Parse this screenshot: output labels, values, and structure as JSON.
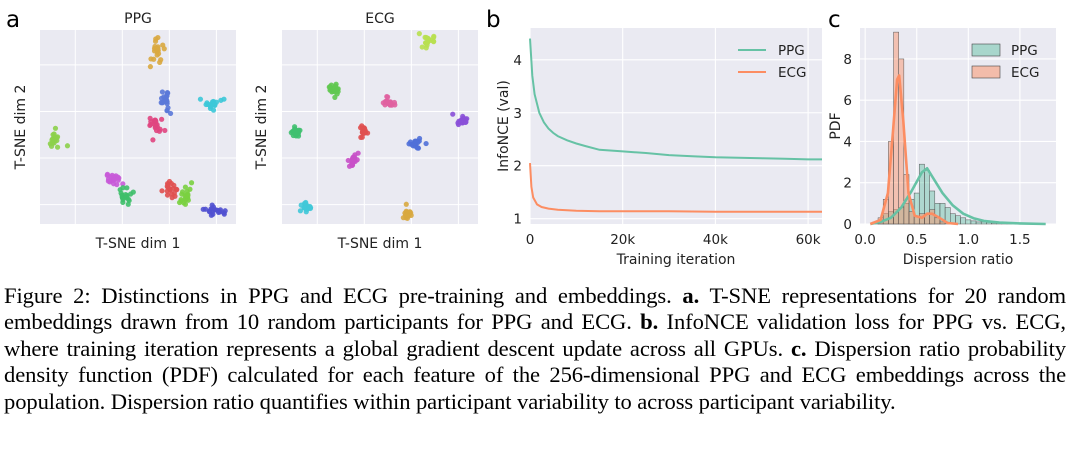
{
  "panels": [
    {
      "letter": "a",
      "subplots": [
        {
          "title": "PPG",
          "xlabel": "T-SNE dim 1",
          "ylabel": "T-SNE dim 2",
          "clusters": [
            {
              "color": "#8cd04a",
              "cx": 55,
              "cy": 143,
              "sx": 4,
              "sy": 9,
              "n": 20
            },
            {
              "color": "#d9a840",
              "cx": 157,
              "cy": 48,
              "sx": 4,
              "sy": 8,
              "n": 20
            },
            {
              "color": "#5a78d8",
              "cx": 165,
              "cy": 101,
              "sx": 4,
              "sy": 7,
              "n": 20
            },
            {
              "color": "#e0457f",
              "cx": 155,
              "cy": 124,
              "sx": 5,
              "sy": 6,
              "n": 20
            },
            {
              "color": "#3cc8d8",
              "cx": 211,
              "cy": 104,
              "sx": 7,
              "sy": 4,
              "n": 20
            },
            {
              "color": "#c85ad8",
              "cx": 112,
              "cy": 178,
              "sx": 7,
              "sy": 4,
              "n": 20
            },
            {
              "color": "#3fbf6a",
              "cx": 126,
              "cy": 197,
              "sx": 5,
              "sy": 7,
              "n": 20
            },
            {
              "color": "#e05050",
              "cx": 171,
              "cy": 189,
              "sx": 5,
              "sy": 6,
              "n": 20
            },
            {
              "color": "#7ad040",
              "cx": 186,
              "cy": 196,
              "sx": 4,
              "sy": 7,
              "n": 20
            },
            {
              "color": "#5050d0",
              "cx": 216,
              "cy": 211,
              "sx": 7,
              "sy": 3,
              "n": 20
            }
          ]
        },
        {
          "title": "ECG",
          "xlabel": "T-SNE dim 1",
          "ylabel": "T-SNE dim 2",
          "clusters": [
            {
              "color": "#b8e050",
              "cx": 428,
              "cy": 42,
              "sx": 4,
              "sy": 3,
              "n": 20
            },
            {
              "color": "#60c850",
              "cx": 334,
              "cy": 90,
              "sx": 4,
              "sy": 3,
              "n": 20
            },
            {
              "color": "#e060a0",
              "cx": 389,
              "cy": 102,
              "sx": 4,
              "sy": 3,
              "n": 20
            },
            {
              "color": "#8a50d8",
              "cx": 463,
              "cy": 120,
              "sx": 3,
              "sy": 3,
              "n": 20
            },
            {
              "color": "#40c070",
              "cx": 296,
              "cy": 133,
              "sx": 3,
              "sy": 3,
              "n": 20
            },
            {
              "color": "#e05050",
              "cx": 363,
              "cy": 131,
              "sx": 3,
              "sy": 4,
              "n": 20
            },
            {
              "color": "#5070d8",
              "cx": 416,
              "cy": 144,
              "sx": 4,
              "sy": 3,
              "n": 20
            },
            {
              "color": "#c850c8",
              "cx": 354,
              "cy": 159,
              "sx": 3,
              "sy": 4,
              "n": 20
            },
            {
              "color": "#40c8d8",
              "cx": 306,
              "cy": 207,
              "sx": 4,
              "sy": 3,
              "n": 20
            },
            {
              "color": "#d8a840",
              "cx": 407,
              "cy": 214,
              "sx": 4,
              "sy": 3,
              "n": 20
            }
          ]
        }
      ]
    },
    {
      "letter": "b",
      "xlabel": "Training iteration",
      "ylabel": "InfoNCE (val)",
      "xticks": [
        "0",
        "20k",
        "40k",
        "60k"
      ],
      "yticks": [
        "1",
        "2",
        "3",
        "4"
      ],
      "legend": [
        {
          "label": "PPG",
          "color": "#66c2a5"
        },
        {
          "label": "ECG",
          "color": "#fc8d62"
        }
      ]
    },
    {
      "letter": "c",
      "xlabel": "Dispersion ratio",
      "ylabel": "PDF",
      "xticks": [
        "0.0",
        "0.5",
        "1.0",
        "1.5"
      ],
      "yticks": [
        "0",
        "2",
        "4",
        "6",
        "8"
      ],
      "legend": [
        {
          "label": "PPG",
          "color": "#66c2a5"
        },
        {
          "label": "ECG",
          "color": "#fc8d62"
        }
      ]
    }
  ],
  "chart_data": [
    {
      "type": "line",
      "title": "",
      "xlabel": "Training iteration",
      "ylabel": "InfoNCE (val)",
      "xlim": [
        0,
        63000
      ],
      "ylim": [
        0.9,
        4.6
      ],
      "series": [
        {
          "name": "PPG",
          "color": "#66c2a5",
          "x": [
            0,
            500,
            1000,
            2000,
            3000,
            4000,
            5000,
            6000,
            8000,
            10000,
            12000,
            15000,
            20000,
            25000,
            30000,
            35000,
            40000,
            45000,
            50000,
            55000,
            60000,
            63000
          ],
          "y": [
            4.4,
            3.7,
            3.35,
            3.0,
            2.82,
            2.7,
            2.62,
            2.56,
            2.48,
            2.42,
            2.37,
            2.3,
            2.27,
            2.24,
            2.2,
            2.18,
            2.16,
            2.15,
            2.14,
            2.13,
            2.12,
            2.12
          ]
        },
        {
          "name": "ECG",
          "color": "#fc8d62",
          "x": [
            0,
            300,
            700,
            1500,
            2500,
            4000,
            6000,
            8000,
            10000,
            15000,
            20000,
            30000,
            40000,
            50000,
            63000
          ],
          "y": [
            2.05,
            1.6,
            1.4,
            1.27,
            1.22,
            1.19,
            1.17,
            1.16,
            1.15,
            1.14,
            1.14,
            1.14,
            1.13,
            1.13,
            1.13
          ]
        }
      ]
    },
    {
      "type": "bar",
      "title": "",
      "xlabel": "Dispersion ratio",
      "ylabel": "PDF",
      "xlim": [
        -0.05,
        1.85
      ],
      "ylim": [
        0,
        9.5
      ],
      "bin_width": 0.05,
      "series": [
        {
          "name": "PPG",
          "color": "#66c2a5",
          "x": [
            0.1,
            0.15,
            0.2,
            0.25,
            0.3,
            0.35,
            0.4,
            0.45,
            0.5,
            0.55,
            0.6,
            0.65,
            0.7,
            0.75,
            0.8,
            0.85,
            0.9,
            0.95,
            1.0,
            1.05,
            1.1,
            1.15,
            1.2,
            1.25,
            1.3,
            1.35,
            1.4,
            1.5,
            1.6,
            1.7
          ],
          "values": [
            0.1,
            0.2,
            0.5,
            0.6,
            0.7,
            0.8,
            1.0,
            1.2,
            1.5,
            2.9,
            2.6,
            1.6,
            1.0,
            1.0,
            0.8,
            0.5,
            0.4,
            0.3,
            0.2,
            0.15,
            0.1,
            0.1,
            0.08,
            0.05,
            0.05,
            0.05,
            0.04,
            0.03,
            0.02,
            0.02
          ],
          "kde_x": [
            0.05,
            0.15,
            0.25,
            0.35,
            0.45,
            0.55,
            0.6,
            0.65,
            0.75,
            0.85,
            0.95,
            1.05,
            1.15,
            1.3,
            1.5,
            1.75
          ],
          "kde_y": [
            0.0,
            0.1,
            0.3,
            0.8,
            1.6,
            2.5,
            2.7,
            2.3,
            1.5,
            0.9,
            0.5,
            0.28,
            0.15,
            0.07,
            0.03,
            0.0
          ]
        },
        {
          "name": "ECG",
          "color": "#fc8d62",
          "x": [
            0.15,
            0.2,
            0.25,
            0.3,
            0.35,
            0.4,
            0.45,
            0.5,
            0.55,
            0.6,
            0.65,
            0.7,
            0.75
          ],
          "values": [
            0.3,
            1.2,
            4.0,
            9.3,
            8.0,
            2.4,
            0.6,
            0.4,
            0.5,
            0.5,
            0.7,
            0.3,
            0.1
          ],
          "kde_x": [
            0.05,
            0.15,
            0.22,
            0.27,
            0.31,
            0.33,
            0.37,
            0.42,
            0.48,
            0.55,
            0.6,
            0.65,
            0.72,
            0.8,
            0.9
          ],
          "kde_y": [
            0.0,
            0.2,
            1.5,
            4.5,
            7.0,
            7.2,
            5.0,
            1.5,
            0.4,
            0.3,
            0.5,
            0.5,
            0.3,
            0.05,
            0.0
          ]
        }
      ]
    }
  ],
  "caption": {
    "lead": "Figure 2: Distinctions in PPG and ECG pre-training and embeddings.",
    "a_label": "a.",
    "a_text": "T-SNE representations for 20 random embeddings drawn from 10 random participants for PPG and ECG.",
    "b_label": "b.",
    "b_text": "InfoNCE validation loss for PPG vs. ECG, where training iteration represents a global gradient descent update across all GPUs.",
    "c_label": "c.",
    "c_text": "Dispersion ratio probability density function (PDF) calculated for each feature of the 256-dimensional PPG and ECG embeddings across the population. Dispersion ratio quantifies within participant variability to across participant variability."
  }
}
